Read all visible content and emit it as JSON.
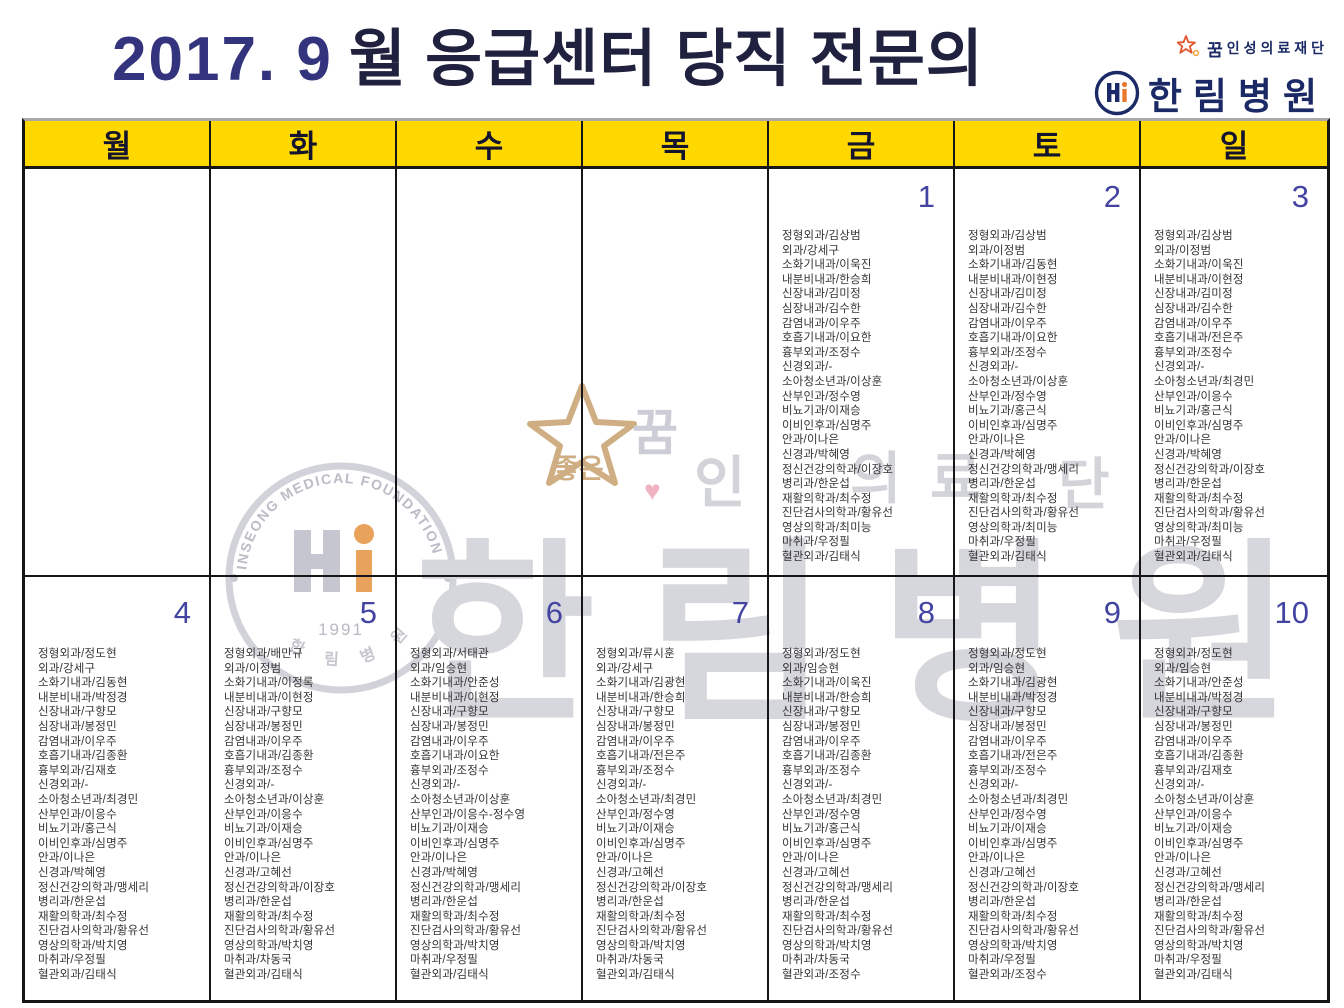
{
  "title": {
    "year": "2017. 9",
    "rest": "월 응급센터 당직 전문의"
  },
  "logo": {
    "star_good": "좋은",
    "star_kkum": "꿈",
    "foundation": "인성의료재단",
    "hospital": "한림병원"
  },
  "colors": {
    "header_yellow": "#ffd800",
    "date_blue": "#4343a2",
    "logo_navy": "#1b2a66",
    "title_navy": "#20203f",
    "watermark_gray": "#d6d6dd",
    "watermark_tan": "#c9a87c"
  },
  "weekdays": [
    "월",
    "화",
    "수",
    "목",
    "금",
    "토",
    "일"
  ],
  "watermark": {
    "seal_arc_text": "INSEONG MEDICAL FOUNDATION",
    "seal_year": "1991",
    "seal_bottom_text": "한 림 병 원",
    "star_good": "좋은",
    "star_kkum": "꿈",
    "foundation_chars": [
      "인",
      "의",
      "료",
      "단"
    ],
    "hospital_text": "한림병원"
  },
  "calendar": {
    "rows": [
      {
        "cells": [
          {
            "date": "",
            "entries": []
          },
          {
            "date": "",
            "entries": []
          },
          {
            "date": "",
            "entries": []
          },
          {
            "date": "",
            "entries": []
          },
          {
            "date": "1",
            "entries": [
              "정형외과/김상범",
              "외과/강세구",
              "소화기내과/이욱진",
              "내분비내과/한승희",
              "신장내과/김미정",
              "심장내과/김수한",
              "감염내과/이우주",
              "호흡기내과/이요한",
              "흉부외과/조정수",
              "신경외과/-",
              "소아청소년과/이상훈",
              "산부인과/정수영",
              "비뇨기과/이재승",
              "이비인후과/심명주",
              "안과/이나은",
              "신경과/박혜영",
              "정신건강의학과/이장호",
              "병리과/한운섭",
              "재활의학과/최수정",
              "진단검사의학과/황유선",
              "영상의학과/최미능",
              "마취과/우정필",
              "혈관외과/김태식"
            ]
          },
          {
            "date": "2",
            "entries": [
              "정형외과/김상범",
              "외과/이정범",
              "소화기내과/김동현",
              "내분비내과/이현정",
              "신장내과/김미정",
              "심장내과/김수한",
              "감염내과/이우주",
              "호흡기내과/이요한",
              "흉부외과/조정수",
              "신경외과/-",
              "소아청소년과/이상훈",
              "산부인과/정수영",
              "비뇨기과/홍근식",
              "이비인후과/심명주",
              "안과/이나은",
              "신경과/박혜영",
              "정신건강의학과/맹세리",
              "병리과/한운섭",
              "재활의학과/최수정",
              "진단검사의학과/황유선",
              "영상의학과/최미능",
              "마취과/우정필",
              "혈관외과/김태식"
            ]
          },
          {
            "date": "3",
            "entries": [
              "정형외과/김상범",
              "외과/이정범",
              "소화기내과/이욱진",
              "내분비내과/이현정",
              "신장내과/김미정",
              "심장내과/김수한",
              "감염내과/이우주",
              "호흡기내과/전은주",
              "흉부외과/조정수",
              "신경외과/-",
              "소아청소년과/최경민",
              "산부인과/이응수",
              "비뇨기과/홍근식",
              "이비인후과/심명주",
              "안과/이나은",
              "신경과/박혜영",
              "정신건강의학과/이장호",
              "병리과/한운섭",
              "재활의학과/최수정",
              "진단검사의학과/황유선",
              "영상의학과/최미능",
              "마취과/우정필",
              "혈관외과/김태식"
            ]
          }
        ]
      },
      {
        "cells": [
          {
            "date": "4",
            "entries": [
              "정형외과/정도현",
              "외과/강세구",
              "소화기내과/김동현",
              "내분비내과/박정경",
              "신장내과/구향모",
              "심장내과/봉정민",
              "감염내과/이우주",
              "호흡기내과/김종환",
              "흉부외과/김재호",
              "신경외과/-",
              "소아청소년과/최경민",
              "산부인과/이응수",
              "비뇨기과/홍근식",
              "이비인후과/심명주",
              "안과/이나은",
              "신경과/박혜영",
              "정신건강의학과/맹세리",
              "병리과/한운섭",
              "재활의학과/최수정",
              "진단검사의학과/황유선",
              "영상의학과/박치영",
              "마취과/우정필",
              "혈관외과/김태식"
            ]
          },
          {
            "date": "5",
            "entries": [
              "정형외과/배만규",
              "외과/이정범",
              "소화기내과/이정록",
              "내분비내과/이현정",
              "신장내과/구향모",
              "심장내과/봉정민",
              "감염내과/이우주",
              "호흡기내과/김종환",
              "흉부외과/조정수",
              "신경외과/-",
              "소아청소년과/이상훈",
              "산부인과/이응수",
              "비뇨기과/이재승",
              "이비인후과/심명주",
              "안과/이나은",
              "신경과/고혜선",
              "정신건강의학과/이장호",
              "병리과/한운섭",
              "재활의학과/최수정",
              "진단검사의학과/황유선",
              "영상의학과/박치영",
              "마취과/차동국",
              "혈관외과/김태식"
            ]
          },
          {
            "date": "6",
            "entries": [
              "정형외과/서태관",
              "외과/임승현",
              "소화기내과/안준성",
              "내분비내과/이현정",
              "신장내과/구향모",
              "심장내과/봉정민",
              "감염내과/이우주",
              "호흡기내과/이요한",
              "흉부외과/조정수",
              "신경외과/-",
              "소아청소년과/이상훈",
              "산부인과/이응수-정수영",
              "비뇨기과/이재승",
              "이비인후과/심명주",
              "안과/이나은",
              "신경과/박혜영",
              "정신건강의학과/맹세리",
              "병리과/한운섭",
              "재활의학과/최수정",
              "진단검사의학과/황유선",
              "영상의학과/박치영",
              "마취과/우정필",
              "혈관외과/김태식"
            ]
          },
          {
            "date": "7",
            "entries": [
              "정형외과/류시훈",
              "외과/강세구",
              "소화기내과/김광현",
              "내분비내과/한승희",
              "신장내과/구향모",
              "심장내과/봉정민",
              "감염내과/이우주",
              "호흡기내과/전은주",
              "흉부외과/조정수",
              "신경외과/-",
              "소아청소년과/최경민",
              "산부인과/정수영",
              "비뇨기과/이재승",
              "이비인후과/심명주",
              "안과/이나은",
              "신경과/고혜선",
              "정신건강의학과/이장호",
              "병리과/한운섭",
              "재활의학과/최수정",
              "진단검사의학과/황유선",
              "영상의학과/박치영",
              "마취과/차동국",
              "혈관외과/김태식"
            ]
          },
          {
            "date": "8",
            "entries": [
              "정형외과/정도현",
              "외과/임승현",
              "소화기내과/이욱진",
              "내분비내과/한승희",
              "신장내과/구향모",
              "심장내과/봉정민",
              "감염내과/이우주",
              "호흡기내과/김종환",
              "흉부외과/조정수",
              "신경외과/-",
              "소아청소년과/최경민",
              "산부인과/정수영",
              "비뇨기과/홍근식",
              "이비인후과/심명주",
              "안과/이나은",
              "신경과/고혜선",
              "정신건강의학과/맹세리",
              "병리과/한운섭",
              "재활의학과/최수정",
              "진단검사의학과/황유선",
              "영상의학과/박치영",
              "마취과/차동국",
              "혈관외과/조정수"
            ]
          },
          {
            "date": "9",
            "entries": [
              "정형외과/정도현",
              "외과/임승현",
              "소화기내과/김광현",
              "내분비내과/박정경",
              "신장내과/구향모",
              "심장내과/봉정민",
              "감염내과/이우주",
              "호흡기내과/전은주",
              "흉부외과/조정수",
              "신경외과/-",
              "소아청소년과/최경민",
              "산부인과/정수영",
              "비뇨기과/이재승",
              "이비인후과/심명주",
              "안과/이나은",
              "신경과/고혜선",
              "정신건강의학과/이장호",
              "병리과/한운섭",
              "재활의학과/최수정",
              "진단검사의학과/황유선",
              "영상의학과/박치영",
              "마취과/우정필",
              "혈관외과/조정수"
            ]
          },
          {
            "date": "10",
            "entries": [
              "정형외과/정도현",
              "외과/임승현",
              "소화기내과/안준성",
              "내분비내과/박정경",
              "신장내과/구향모",
              "심장내과/봉정민",
              "감염내과/이우주",
              "호흡기내과/김종환",
              "흉부외과/김재호",
              "신경외과/-",
              "소아청소년과/이상훈",
              "산부인과/이응수",
              "비뇨기과/이재승",
              "이비인후과/심명주",
              "안과/이나은",
              "신경과/고혜선",
              "정신건강의학과/맹세리",
              "병리과/한운섭",
              "재활의학과/최수정",
              "진단검사의학과/황유선",
              "영상의학과/박치영",
              "마취과/우정필",
              "혈관외과/김태식"
            ]
          }
        ]
      }
    ]
  }
}
